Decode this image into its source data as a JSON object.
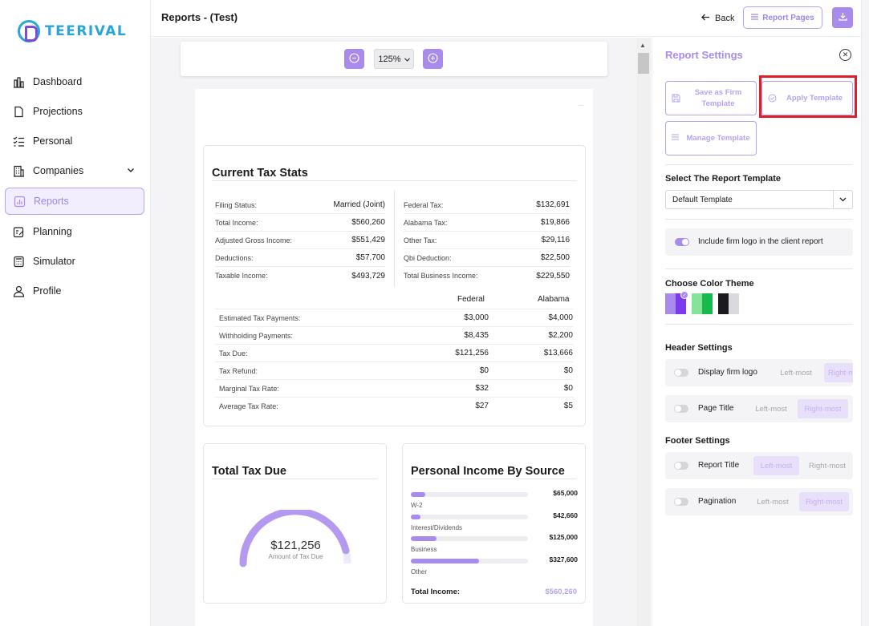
{
  "brand": {
    "name": "TEERIVAL"
  },
  "sidebar": {
    "items": [
      {
        "label": "Dashboard",
        "icon": "bar-chart-icon"
      },
      {
        "label": "Projections",
        "icon": "document-icon"
      },
      {
        "label": "Personal",
        "icon": "checklist-icon"
      },
      {
        "label": "Companies",
        "icon": "building-icon"
      },
      {
        "label": "Reports",
        "icon": "report-chart-icon",
        "active": true
      },
      {
        "label": "Planning",
        "icon": "planning-icon"
      },
      {
        "label": "Simulator",
        "icon": "calculator-icon"
      },
      {
        "label": "Profile",
        "icon": "user-icon"
      }
    ]
  },
  "header": {
    "title": "Reports - (Test)",
    "back_label": "Back",
    "report_pages_label": "Report Pages"
  },
  "preview": {
    "zoom": "125%",
    "tax_stats": {
      "title": "Current Tax Stats",
      "left": [
        {
          "label": "Filing Status:",
          "value": "Married (Joint)"
        },
        {
          "label": "Total Income:",
          "value": "$560,260"
        },
        {
          "label": "Adjusted Gross Income:",
          "value": "$551,429"
        },
        {
          "label": "Deductions:",
          "value": "$57,700"
        },
        {
          "label": "Taxable Income:",
          "value": "$493,729"
        }
      ],
      "right": [
        {
          "label": "Federal Tax:",
          "value": "$132,691"
        },
        {
          "label": "Alabama Tax:",
          "value": "$19,866"
        },
        {
          "label": "Other Tax:",
          "value": "$29,116"
        },
        {
          "label": "Qbi Deduction:",
          "value": "$22,500"
        },
        {
          "label": "Total Business Income:",
          "value": "$229,550"
        }
      ],
      "table_headers": [
        "Federal",
        "Alabama"
      ],
      "table_rows": [
        {
          "label": "Estimated Tax Payments:",
          "federal": "$3,000",
          "state": "$4,000"
        },
        {
          "label": "Withholding Payments:",
          "federal": "$8,435",
          "state": "$2,200"
        },
        {
          "label": "Tax Due:",
          "federal": "$121,256",
          "state": "$13,666"
        },
        {
          "label": "Tax Refund:",
          "federal": "$0",
          "state": "$0"
        },
        {
          "label": "Marginal Tax Rate:",
          "federal": "$32",
          "state": "$0"
        },
        {
          "label": "Average Tax Rate:",
          "federal": "$27",
          "state": "$5"
        }
      ]
    },
    "total_tax": {
      "title": "Total Tax Due",
      "value": "$121,256",
      "sublabel": "Amount of Tax Due",
      "gauge_fraction": 0.92
    },
    "income_source": {
      "title": "Personal Income By Source",
      "items": [
        {
          "label": "W-2",
          "value": "$65,000",
          "fraction": 0.12
        },
        {
          "label": "Interest/Dividends",
          "value": "$42,660",
          "fraction": 0.08
        },
        {
          "label": "Business",
          "value": "$125,000",
          "fraction": 0.22
        },
        {
          "label": "Other",
          "value": "$327,600",
          "fraction": 0.58
        }
      ],
      "total_label": "Total Income:",
      "total_value": "$560,260"
    }
  },
  "settings": {
    "title": "Report Settings",
    "save_firm_template": "Save as Firm Template",
    "apply_template": "Apply Template",
    "manage_template": "Manage Template",
    "select_template_heading": "Select The Report Template",
    "selected_template": "Default Template",
    "firm_logo_option": "Include firm logo in the client report",
    "color_theme_heading": "Choose Color Theme",
    "color_themes": [
      {
        "a": "#a98bee",
        "b": "#7c3aed",
        "selected": true
      },
      {
        "a": "#86e39a",
        "b": "#16b94a",
        "selected": false
      },
      {
        "a": "#1b1b1f",
        "b": "#d9d9de",
        "selected": false
      }
    ],
    "header_settings_heading": "Header Settings",
    "header_options": [
      {
        "label": "Display firm logo",
        "left": "Left-most",
        "right": "Right-most",
        "selected": "right"
      },
      {
        "label": "Page Title",
        "left": "Left-most",
        "right": "Right-most",
        "selected": "right"
      }
    ],
    "footer_settings_heading": "Footer Settings",
    "footer_options": [
      {
        "label": "Report Title",
        "left": "Left-most",
        "right": "Right-most",
        "selected": "left"
      },
      {
        "label": "Pagination",
        "left": "Left-most",
        "right": "Right-most",
        "selected": "right"
      }
    ]
  }
}
